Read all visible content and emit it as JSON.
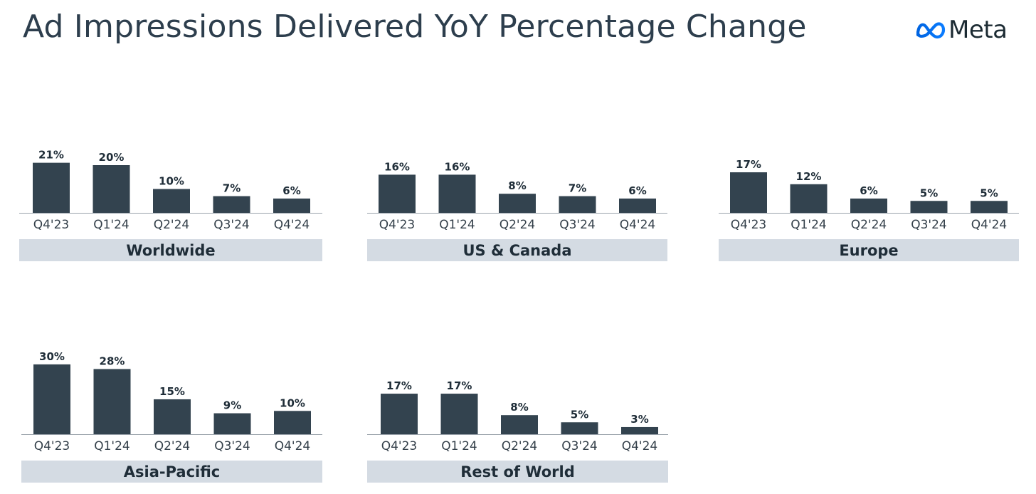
{
  "title": "Ad Impressions Delivered YoY Percentage Change",
  "logo": {
    "icon": "meta-infinity-icon",
    "text": "Meta"
  },
  "colors": {
    "bar": "#33434f",
    "baseline": "#9aa3ab",
    "label_band": "#d4dbe3",
    "title": "#2d3e4d",
    "logo_blue": "#0a6cff"
  },
  "chart_data": [
    {
      "type": "bar",
      "title": "Worldwide",
      "categories": [
        "Q4'23",
        "Q1'24",
        "Q2'24",
        "Q3'24",
        "Q4'24"
      ],
      "values": [
        21,
        20,
        10,
        7,
        6
      ],
      "labels": [
        "21%",
        "20%",
        "10%",
        "7%",
        "6%"
      ],
      "unit": "%",
      "ylim": [
        0,
        30
      ]
    },
    {
      "type": "bar",
      "title": "US & Canada",
      "categories": [
        "Q4'23",
        "Q1'24",
        "Q2'24",
        "Q3'24",
        "Q4'24"
      ],
      "values": [
        16,
        16,
        8,
        7,
        6
      ],
      "labels": [
        "16%",
        "16%",
        "8%",
        "7%",
        "6%"
      ],
      "unit": "%",
      "ylim": [
        0,
        30
      ]
    },
    {
      "type": "bar",
      "title": "Europe",
      "categories": [
        "Q4'23",
        "Q1'24",
        "Q2'24",
        "Q3'24",
        "Q4'24"
      ],
      "values": [
        17,
        12,
        6,
        5,
        5
      ],
      "labels": [
        "17%",
        "12%",
        "6%",
        "5%",
        "5%"
      ],
      "unit": "%",
      "ylim": [
        0,
        30
      ]
    },
    {
      "type": "bar",
      "title": "Asia-Pacific",
      "categories": [
        "Q4'23",
        "Q1'24",
        "Q2'24",
        "Q3'24",
        "Q4'24"
      ],
      "values": [
        30,
        28,
        15,
        9,
        10
      ],
      "labels": [
        "30%",
        "28%",
        "15%",
        "9%",
        "10%"
      ],
      "unit": "%",
      "ylim": [
        0,
        30
      ]
    },
    {
      "type": "bar",
      "title": "Rest of World",
      "categories": [
        "Q4'23",
        "Q1'24",
        "Q2'24",
        "Q3'24",
        "Q4'24"
      ],
      "values": [
        17,
        17,
        8,
        5,
        3
      ],
      "labels": [
        "17%",
        "17%",
        "8%",
        "5%",
        "3%"
      ],
      "unit": "%",
      "ylim": [
        0,
        30
      ]
    }
  ]
}
